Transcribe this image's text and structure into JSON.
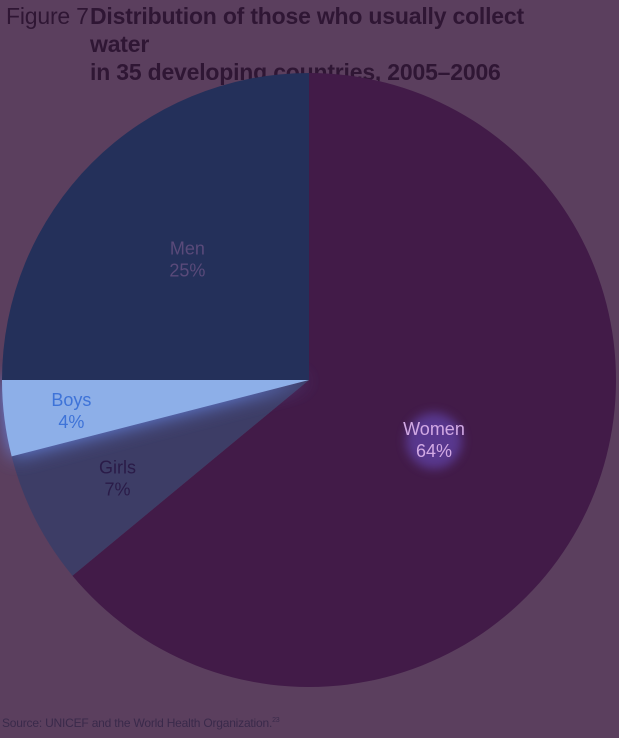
{
  "figure": {
    "label": "Figure 7",
    "title_line1": "Distribution of those who usually collect water",
    "title_line2": "in 35 developing countries, 2005–2006"
  },
  "source": {
    "text": "Source: UNICEF and the World Health Organization.",
    "footnote": "23"
  },
  "chart_data": {
    "type": "pie",
    "title": "Distribution of those who usually collect water in 35 developing countries, 2005–2006",
    "slices": [
      {
        "name": "Women",
        "value": 64,
        "label": "64%",
        "color": "#421b48"
      },
      {
        "name": "Girls",
        "value": 7,
        "label": "7%",
        "color": "#3d3d66"
      },
      {
        "name": "Boys",
        "value": 4,
        "label": "4%",
        "color": "#8dafe8"
      },
      {
        "name": "Men",
        "value": 25,
        "label": "25%",
        "color": "#24305a"
      }
    ],
    "label_colors": {
      "Women": "#d2a9e4",
      "Girls": "#2a1b48",
      "Boys": "#3e73d8",
      "Men": "#5a4a7a"
    },
    "legend": "none"
  }
}
